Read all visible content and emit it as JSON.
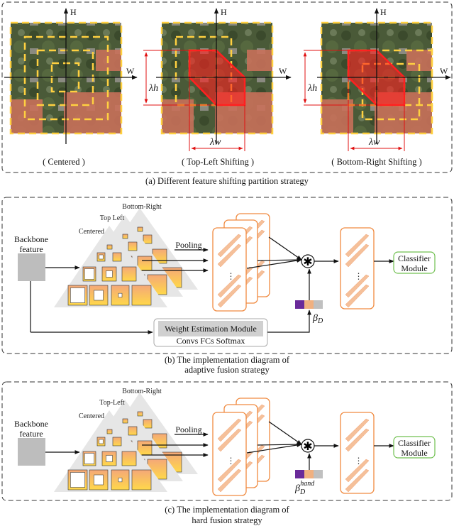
{
  "panel_a": {
    "axis_h": "H",
    "axis_w": "W",
    "lambda_h": "λh",
    "lambda_w": "λw",
    "views": [
      {
        "label": "( Centered )"
      },
      {
        "label": "( Top-Left Shifting )"
      },
      {
        "label": "( Bottom-Right Shifting )"
      }
    ],
    "caption": "(a) Different feature shifting partition strategy"
  },
  "panel_b": {
    "backbone": [
      "Backbone",
      "feature"
    ],
    "pyramids": [
      "Centered",
      "Top Left",
      "Bottom-Right"
    ],
    "pooling": "Pooling",
    "weight_module": "Weight Estimation Module",
    "weight_module_sub": "Convs  FCs  Softmax",
    "beta": "β",
    "beta_sub": "D",
    "classifier": [
      "Classifier",
      "Module"
    ],
    "fusion_symbol": "✱",
    "caption": [
      "(b) The implementation diagram of",
      "adaptive fusion strategy"
    ]
  },
  "panel_c": {
    "backbone": [
      "Backbone",
      "feature"
    ],
    "pyramids": [
      "Centered",
      "Top-Left",
      "Bottom-Right"
    ],
    "pooling": "Pooling",
    "beta": "β",
    "beta_sub": "D",
    "beta_sup": "hand",
    "classifier": [
      "Classifier",
      "Module"
    ],
    "fusion_symbol": "✱",
    "caption": [
      "(c) The implementation diagram of",
      "hard fusion strategy"
    ]
  },
  "colors": {
    "shift_region": "#ff2020",
    "partition_dash": "#ffd040",
    "feature_border": "#f08a40",
    "feature_bar": "#f5c09a",
    "classifier_border": "#70c050",
    "weight_purple": "#6a2a9a",
    "weight_peach": "#f0b080",
    "weight_gray": "#c0c0c0"
  }
}
